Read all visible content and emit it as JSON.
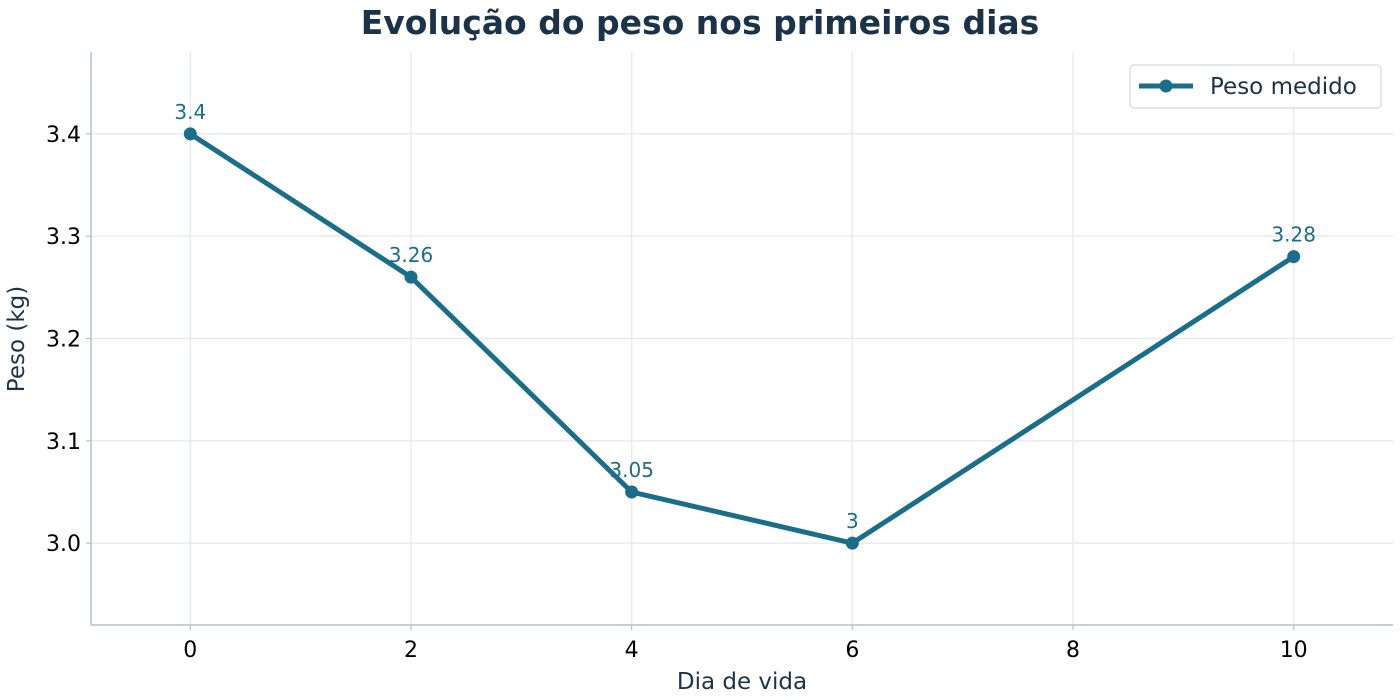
{
  "chart_data": {
    "type": "line",
    "title": "Evolução do peso nos primeiros dias",
    "xlabel": "Dia de vida",
    "ylabel": "Peso (kg)",
    "x": [
      0,
      2,
      4,
      6,
      10
    ],
    "series": [
      {
        "name": "Peso medido",
        "values": [
          3.4,
          3.26,
          3.05,
          3.0,
          3.28
        ],
        "data_labels": [
          "3.4",
          "3.26",
          "3.05",
          "3",
          "3.28"
        ],
        "color": "#1a6e8a"
      }
    ],
    "xlim": [
      -0.9,
      10.9
    ],
    "ylim": [
      2.92,
      3.48
    ],
    "xticks": [
      0,
      2,
      4,
      6,
      8,
      10
    ],
    "xtick_labels": [
      "0",
      "2",
      "4",
      "6",
      "8",
      "10"
    ],
    "yticks": [
      3.0,
      3.1,
      3.2,
      3.3,
      3.4
    ],
    "ytick_labels": [
      "3.0",
      "3.1",
      "3.2",
      "3.3",
      "3.4"
    ],
    "grid": true,
    "legend_position": "top-right",
    "colors": {
      "line": "#1a6e8a",
      "grid": "#e8ebee",
      "axis": "#b4c0c8",
      "title": "#1b3349"
    }
  }
}
